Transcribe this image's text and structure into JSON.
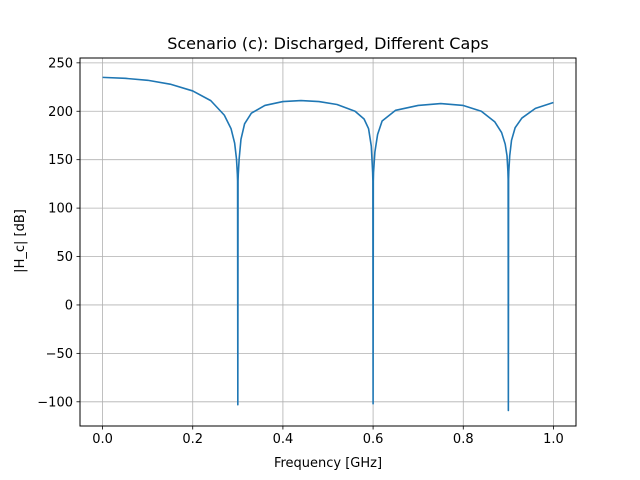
{
  "chart_data": {
    "type": "line",
    "title": "Scenario (c): Discharged, Different Caps",
    "xlabel": "Frequency [GHz]",
    "ylabel": "|H_c| [dB]",
    "xlim": [
      -0.05,
      1.05
    ],
    "ylim": [
      -125,
      255
    ],
    "grid": true,
    "x_ticks": [
      0.0,
      0.2,
      0.4,
      0.6,
      0.8,
      1.0
    ],
    "x_tick_labels": [
      "0.0",
      "0.2",
      "0.4",
      "0.6",
      "0.8",
      "1.0"
    ],
    "y_ticks": [
      -100,
      -50,
      0,
      50,
      100,
      150,
      200,
      250
    ],
    "y_tick_labels": [
      "−100",
      "−50",
      "0",
      "50",
      "100",
      "150",
      "200",
      "250"
    ],
    "series_color": "#1f77b4",
    "series": [
      {
        "x": [
          0.0,
          0.05,
          0.1,
          0.15,
          0.2,
          0.24,
          0.27,
          0.285,
          0.293,
          0.297,
          0.299,
          0.2995,
          0.3,
          0.3005,
          0.301,
          0.303,
          0.307,
          0.315,
          0.33,
          0.36,
          0.4,
          0.44,
          0.48,
          0.52,
          0.56,
          0.58,
          0.59,
          0.596,
          0.599,
          0.5995,
          0.6,
          0.6005,
          0.601,
          0.604,
          0.61,
          0.62,
          0.65,
          0.7,
          0.75,
          0.8,
          0.84,
          0.87,
          0.885,
          0.893,
          0.897,
          0.899,
          0.8995,
          0.9,
          0.9005,
          0.901,
          0.903,
          0.907,
          0.915,
          0.93,
          0.96,
          1.0
        ],
        "y": [
          235,
          234,
          232,
          228,
          221,
          211,
          196,
          182,
          167,
          151,
          135,
          128,
          -103,
          128,
          135,
          151,
          171,
          187,
          198,
          206,
          210,
          211,
          210,
          207,
          200,
          192,
          182,
          164,
          137,
          128,
          -102,
          128,
          137,
          158,
          176,
          190,
          201,
          206,
          208,
          206,
          200,
          189,
          178,
          166,
          154,
          138,
          130,
          -109,
          130,
          138,
          154,
          170,
          183,
          193,
          203,
          209
        ]
      }
    ]
  }
}
